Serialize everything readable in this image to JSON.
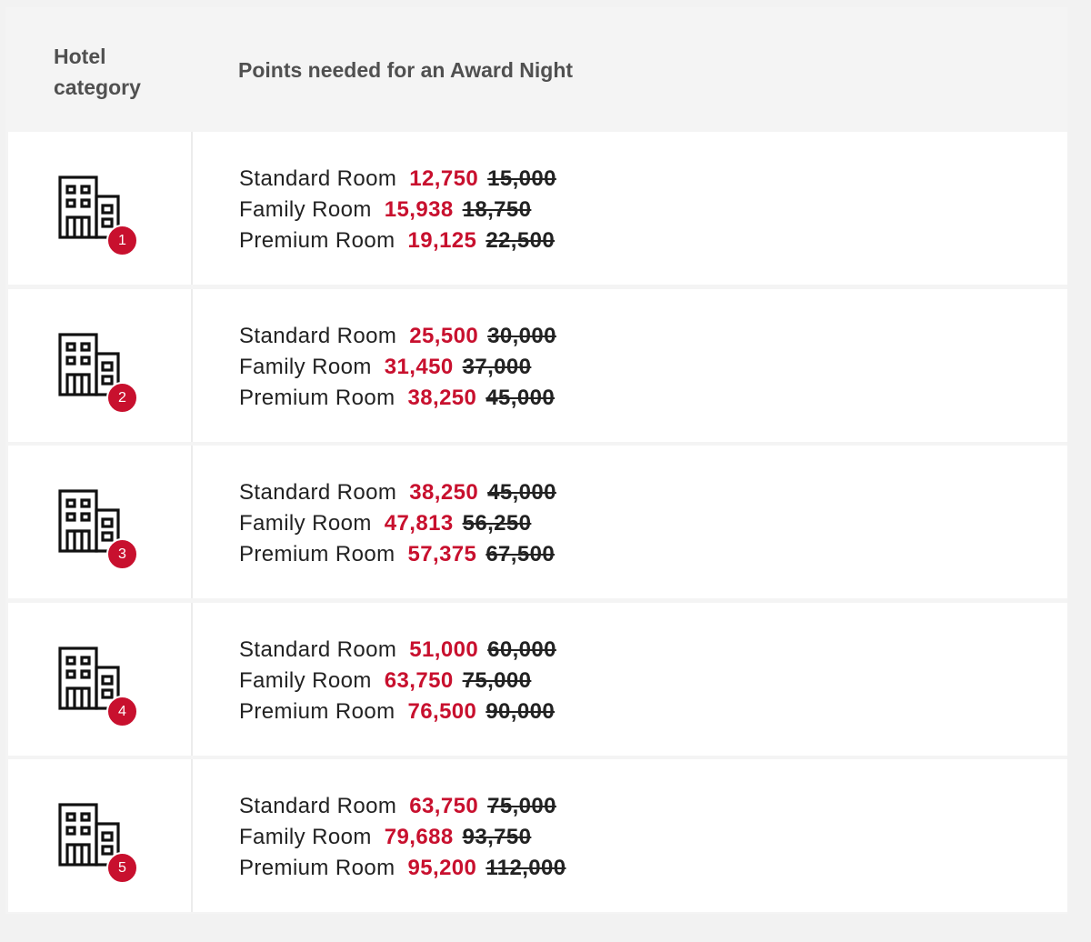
{
  "header": {
    "category_label": "Hotel category",
    "points_label": "Points needed for an Award Night"
  },
  "rows": [
    {
      "category": "1",
      "icon": "hotel-building-icon",
      "rooms": [
        {
          "label": "Standard Room",
          "new": "12,750",
          "old": "15,000"
        },
        {
          "label": "Family Room",
          "new": "15,938",
          "old": "18,750"
        },
        {
          "label": "Premium Room",
          "new": "19,125",
          "old": "22,500"
        }
      ]
    },
    {
      "category": "2",
      "icon": "hotel-building-icon",
      "rooms": [
        {
          "label": "Standard Room",
          "new": "25,500",
          "old": "30,000"
        },
        {
          "label": "Family Room",
          "new": "31,450",
          "old": "37,000"
        },
        {
          "label": "Premium Room",
          "new": "38,250",
          "old": "45,000"
        }
      ]
    },
    {
      "category": "3",
      "icon": "hotel-building-icon",
      "rooms": [
        {
          "label": "Standard Room",
          "new": "38,250",
          "old": "45,000"
        },
        {
          "label": "Family Room",
          "new": "47,813",
          "old": "56,250"
        },
        {
          "label": "Premium Room",
          "new": "57,375",
          "old": "67,500"
        }
      ]
    },
    {
      "category": "4",
      "icon": "hotel-building-icon",
      "rooms": [
        {
          "label": "Standard Room",
          "new": "51,000",
          "old": "60,000"
        },
        {
          "label": "Family Room",
          "new": "63,750",
          "old": "75,000"
        },
        {
          "label": "Premium Room",
          "new": "76,500",
          "old": "90,000"
        }
      ]
    },
    {
      "category": "5",
      "icon": "hotel-building-icon",
      "rooms": [
        {
          "label": "Standard Room",
          "new": "63,750",
          "old": "75,000"
        },
        {
          "label": "Family Room",
          "new": "79,688",
          "old": "93,750"
        },
        {
          "label": "Premium Room",
          "new": "95,200",
          "old": "112,000"
        }
      ]
    }
  ],
  "colors": {
    "accent": "#c8102e",
    "text": "#222222",
    "header_text": "#505050",
    "header_bg": "#f4f4f4"
  }
}
